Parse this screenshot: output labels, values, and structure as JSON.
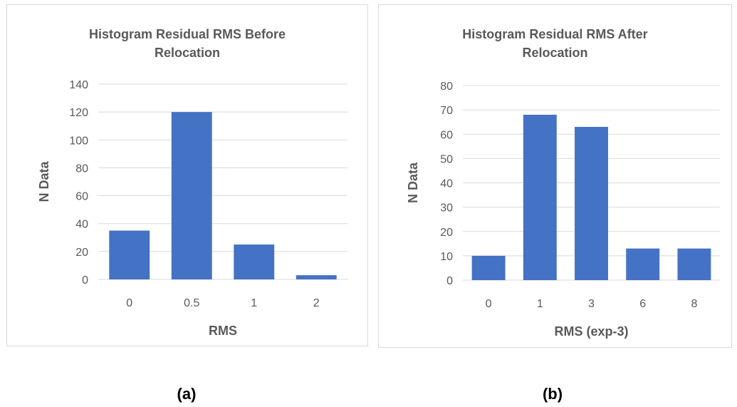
{
  "colors": {
    "bar": "#4472C4",
    "grid": "#d9d9d9",
    "axis_text": "#595959"
  },
  "chart_data": [
    {
      "type": "bar",
      "title": "Histogram Residual RMS Before Relocation",
      "title_lines": [
        "Histogram Residual RMS Before",
        "Relocation"
      ],
      "xlabel": "RMS",
      "ylabel": "N Data",
      "categories": [
        "0",
        "0.5",
        "1",
        "2"
      ],
      "values": [
        35,
        120,
        25,
        3
      ],
      "ylim": [
        0,
        140
      ],
      "yticks": [
        0,
        20,
        40,
        60,
        80,
        100,
        120,
        140
      ],
      "grid": true,
      "caption": "(a)"
    },
    {
      "type": "bar",
      "title": "Histogram Residual RMS After Relocation",
      "title_lines": [
        "Histogram Residual RMS After",
        "Relocation"
      ],
      "xlabel": "RMS (exp-3)",
      "ylabel": "N Data",
      "categories": [
        "0",
        "1",
        "3",
        "6",
        "8"
      ],
      "values": [
        10,
        68,
        63,
        13,
        13
      ],
      "ylim": [
        0,
        80
      ],
      "yticks": [
        0,
        10,
        20,
        30,
        40,
        50,
        60,
        70,
        80
      ],
      "grid": true,
      "caption": "(b)"
    }
  ]
}
